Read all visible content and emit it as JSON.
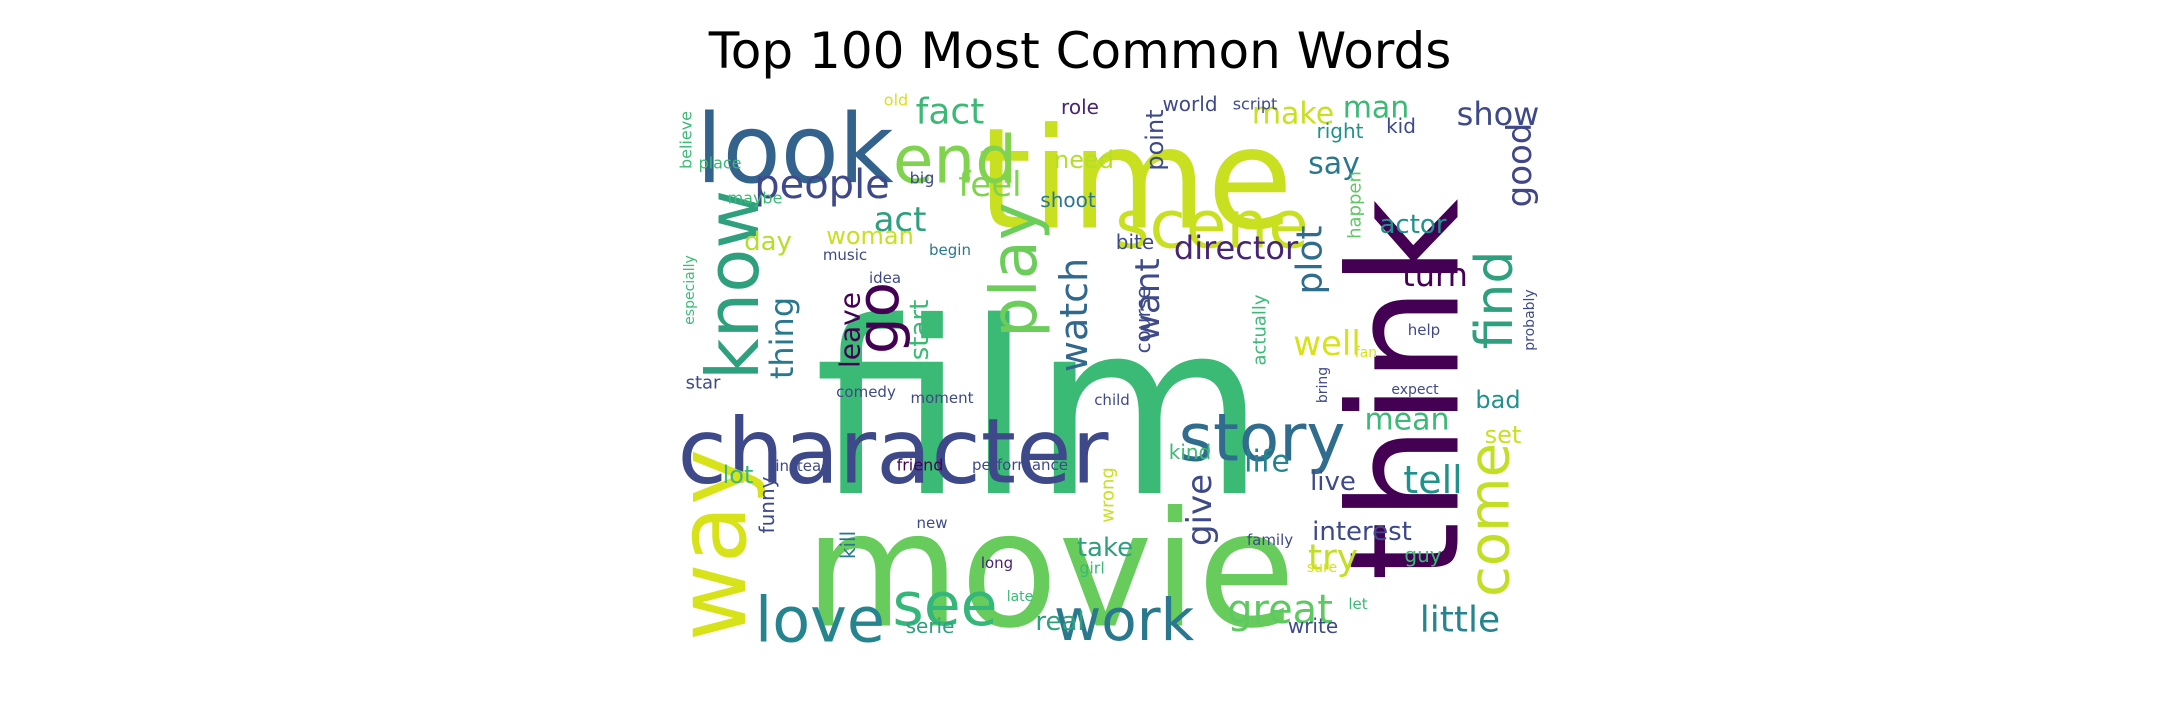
{
  "title": "Top 100 Most Common Words",
  "words": [
    {
      "text": "film",
      "color": "#3bba76"
    },
    {
      "text": "movie",
      "color": "#67cc5c"
    },
    {
      "text": "think",
      "color": "#440154"
    },
    {
      "text": "time",
      "color": "#c8e020"
    },
    {
      "text": "character",
      "color": "#3e4989"
    },
    {
      "text": "look",
      "color": "#33638d"
    },
    {
      "text": "know",
      "color": "#2ea07e"
    },
    {
      "text": "way",
      "color": "#d8e219"
    },
    {
      "text": "story",
      "color": "#2f6c8e"
    },
    {
      "text": "scene",
      "color": "#c8e020"
    },
    {
      "text": "end",
      "color": "#7fd34e"
    },
    {
      "text": "play",
      "color": "#6ccd5a"
    },
    {
      "text": "go",
      "color": "#440154"
    },
    {
      "text": "love",
      "color": "#25848e"
    },
    {
      "text": "work",
      "color": "#2a788e"
    },
    {
      "text": "see",
      "color": "#35b779"
    },
    {
      "text": "come",
      "color": "#c2df23"
    },
    {
      "text": "find",
      "color": "#2ea07e"
    },
    {
      "text": "great",
      "color": "#5ec962"
    },
    {
      "text": "people",
      "color": "#3e4989"
    },
    {
      "text": "fact",
      "color": "#3bba76"
    },
    {
      "text": "feel",
      "color": "#7fd34e"
    },
    {
      "text": "watch",
      "color": "#31688e"
    },
    {
      "text": "want",
      "color": "#3e4a89"
    },
    {
      "text": "plot",
      "color": "#2f6c8e"
    },
    {
      "text": "director",
      "color": "#482475"
    },
    {
      "text": "thing",
      "color": "#2a788e"
    },
    {
      "text": "act",
      "color": "#2ea07e"
    },
    {
      "text": "make",
      "color": "#c8e020"
    },
    {
      "text": "man",
      "color": "#3bba76"
    },
    {
      "text": "show",
      "color": "#3e4989"
    },
    {
      "text": "say",
      "color": "#2a788e"
    },
    {
      "text": "good",
      "color": "#404688"
    },
    {
      "text": "well",
      "color": "#d8e219"
    },
    {
      "text": "turn",
      "color": "#440154"
    },
    {
      "text": "actor",
      "color": "#21918c"
    },
    {
      "text": "mean",
      "color": "#3bba76"
    },
    {
      "text": "life",
      "color": "#25848e"
    },
    {
      "text": "tell",
      "color": "#21918c"
    },
    {
      "text": "little",
      "color": "#25848e"
    },
    {
      "text": "give",
      "color": "#3e4989"
    },
    {
      "text": "try",
      "color": "#c2df23"
    },
    {
      "text": "take",
      "color": "#2ea07e"
    },
    {
      "text": "interest",
      "color": "#3e4989"
    },
    {
      "text": "live",
      "color": "#3e4989"
    },
    {
      "text": "real",
      "color": "#2ea07e"
    },
    {
      "text": "leave",
      "color": "#440154"
    },
    {
      "text": "start",
      "color": "#3bba76"
    },
    {
      "text": "day",
      "color": "#b5de2b"
    },
    {
      "text": "woman",
      "color": "#c8e020"
    },
    {
      "text": "need",
      "color": "#b5de2b"
    },
    {
      "text": "point",
      "color": "#3e4989"
    },
    {
      "text": "bad",
      "color": "#21918c"
    },
    {
      "text": "set",
      "color": "#c8e020"
    },
    {
      "text": "lot",
      "color": "#3bba76"
    },
    {
      "text": "course",
      "color": "#3e4989"
    },
    {
      "text": "guy",
      "color": "#3bba76"
    },
    {
      "text": "shoot",
      "color": "#2a788e"
    },
    {
      "text": "funny",
      "color": "#3e4989"
    },
    {
      "text": "kill",
      "color": "#2a788e"
    },
    {
      "text": "serie",
      "color": "#2ea07e"
    },
    {
      "text": "write",
      "color": "#3e4989"
    },
    {
      "text": "role",
      "color": "#482475"
    },
    {
      "text": "world",
      "color": "#3e4989"
    },
    {
      "text": "right",
      "color": "#21918c"
    },
    {
      "text": "kid",
      "color": "#3e4989"
    },
    {
      "text": "bite",
      "color": "#3e4989"
    },
    {
      "text": "happen",
      "color": "#5ec962"
    },
    {
      "text": "kind",
      "color": "#3bba76"
    },
    {
      "text": "actually",
      "color": "#3bba76"
    },
    {
      "text": "wrong",
      "color": "#c8e020"
    },
    {
      "text": "star",
      "color": "#3e4989"
    },
    {
      "text": "believe",
      "color": "#3bba76"
    },
    {
      "text": "especially",
      "color": "#3bba76"
    },
    {
      "text": "probably",
      "color": "#3e4989"
    },
    {
      "text": "script",
      "color": "#3e4989"
    },
    {
      "text": "old",
      "color": "#d8e219"
    },
    {
      "text": "big",
      "color": "#3e4989"
    },
    {
      "text": "place",
      "color": "#3bba76"
    },
    {
      "text": "maybe",
      "color": "#3bba76"
    },
    {
      "text": "music",
      "color": "#3e4989"
    },
    {
      "text": "idea",
      "color": "#3e4989"
    },
    {
      "text": "begin",
      "color": "#2a788e"
    },
    {
      "text": "comedy",
      "color": "#3e4989"
    },
    {
      "text": "moment",
      "color": "#3e4989"
    },
    {
      "text": "child",
      "color": "#3e4989"
    },
    {
      "text": "instead",
      "color": "#3e4989"
    },
    {
      "text": "friend",
      "color": "#440154"
    },
    {
      "text": "performance",
      "color": "#3e4989"
    },
    {
      "text": "new",
      "color": "#3e4989"
    },
    {
      "text": "long",
      "color": "#482475"
    },
    {
      "text": "girl",
      "color": "#3bba76"
    },
    {
      "text": "late",
      "color": "#3bba76"
    },
    {
      "text": "family",
      "color": "#3e4989"
    },
    {
      "text": "sure",
      "color": "#d8e219"
    },
    {
      "text": "let",
      "color": "#3bba76"
    },
    {
      "text": "expect",
      "color": "#3e4989"
    },
    {
      "text": "help",
      "color": "#3e4989"
    },
    {
      "text": "bring",
      "color": "#3e4989"
    },
    {
      "text": "fan",
      "color": "#d8e219"
    }
  ]
}
